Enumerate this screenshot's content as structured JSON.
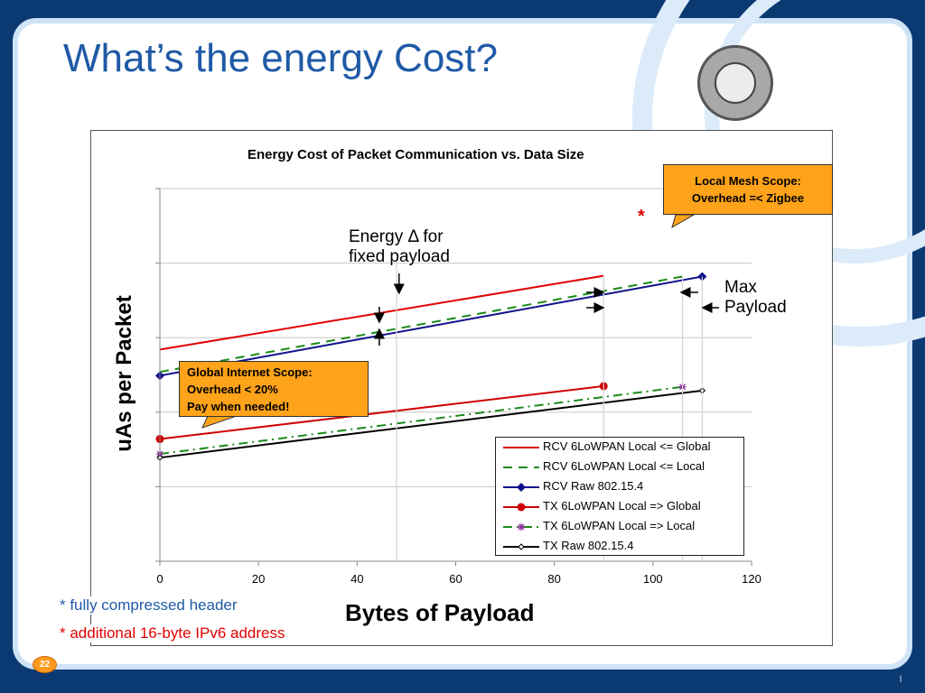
{
  "slide": {
    "title": "What’s the energy Cost?",
    "page_number": "22",
    "footnote_1": "* fully compressed header",
    "footnote_2": "* additional 16-byte IPv6 address",
    "footnote_1_color": "#1f5aa6",
    "footnote_2_color": "#e00000",
    "corner_mark": "l",
    "seal_icon": "university-seal-icon"
  },
  "annotations": {
    "energy_delta_line1": "Energy Δ for",
    "energy_delta_line2": "fixed payload",
    "max_payload_line1": "Max",
    "max_payload_line2": "Payload",
    "star": "*",
    "local_callout_line1": "Local Mesh Scope:",
    "local_callout_line2": "Overhead =< Zigbee",
    "global_callout_line1": "Global Internet Scope:",
    "global_callout_line2": "Overhead < 20%",
    "global_callout_line3": "Pay when needed!"
  },
  "chart_data": {
    "type": "line",
    "title": "Energy Cost of Packet Communication vs. Data Size",
    "xlabel": "Bytes of Payload",
    "ylabel": "uAs per Packet",
    "xlim": [
      0,
      120
    ],
    "x_ticks": [
      "0",
      "20",
      "40",
      "60",
      "80",
      "100",
      "120"
    ],
    "ylim": [
      0,
      5
    ],
    "y_tick_labels_shown": false,
    "grid": "horizontal",
    "legend": "bottom-right",
    "series": [
      {
        "name": "RCV 6LoWPAN Local <= Global",
        "color": "#e00000",
        "dash": "solid",
        "marker": "none",
        "x": [
          0,
          90
        ],
        "y": [
          2.84,
          3.83
        ]
      },
      {
        "name": "RCV 6LoWPAN Local <= Local",
        "color": "#1a8a1a",
        "dash": "dash",
        "marker": "none",
        "x": [
          0,
          106
        ],
        "y": [
          2.54,
          3.82
        ]
      },
      {
        "name": "RCV Raw 802.15.4",
        "color": "#10108c",
        "dash": "solid",
        "marker": "diamond",
        "x": [
          0,
          110
        ],
        "y": [
          2.49,
          3.82
        ]
      },
      {
        "name": "TX  6LoWPAN Local => Global",
        "color": "#d00000",
        "dash": "solid",
        "marker": "circle",
        "x": [
          0,
          90
        ],
        "y": [
          1.64,
          2.35
        ]
      },
      {
        "name": "TX  6LoWPAN Local => Local",
        "color": "#1a8a1a",
        "dash": "dashdot",
        "marker": "star",
        "x": [
          0,
          106
        ],
        "y": [
          1.44,
          2.34
        ]
      },
      {
        "name": "TX  Raw 802.15.4",
        "color": "#000000",
        "dash": "solid",
        "marker": "small-diamond",
        "x": [
          0,
          110
        ],
        "y": [
          1.39,
          2.29
        ]
      }
    ]
  }
}
